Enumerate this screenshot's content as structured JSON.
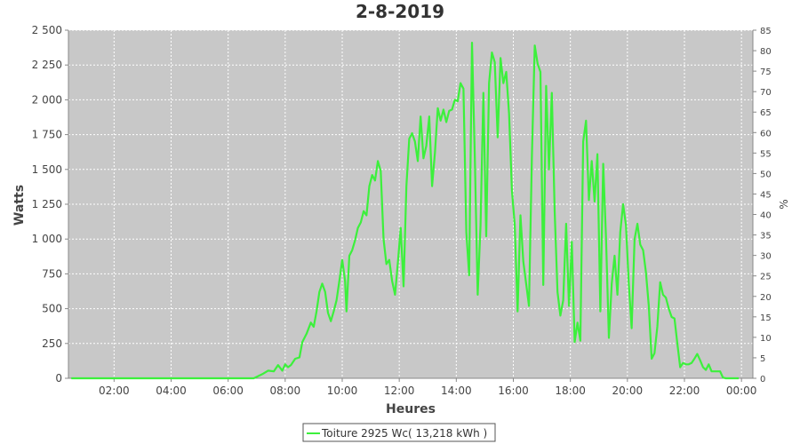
{
  "chart_data": {
    "type": "line",
    "title": "2-8-2019",
    "xlabel": "Heures",
    "ylabel": "Watts",
    "y2label": "%",
    "xlim": [
      0.4,
      24.4
    ],
    "ylim": [
      0,
      2500
    ],
    "y2lim": [
      0,
      85
    ],
    "x_ticks": [
      {
        "x": 2,
        "label": "02:00"
      },
      {
        "x": 4,
        "label": "04:00"
      },
      {
        "x": 6,
        "label": "06:00"
      },
      {
        "x": 8,
        "label": "08:00"
      },
      {
        "x": 10,
        "label": "10:00"
      },
      {
        "x": 12,
        "label": "12:00"
      },
      {
        "x": 14,
        "label": "14:00"
      },
      {
        "x": 16,
        "label": "16:00"
      },
      {
        "x": 18,
        "label": "18:00"
      },
      {
        "x": 20,
        "label": "20:00"
      },
      {
        "x": 22,
        "label": "22:00"
      },
      {
        "x": 24,
        "label": "00:00"
      }
    ],
    "y_ticks": [
      {
        "v": 0,
        "label": "0"
      },
      {
        "v": 250,
        "label": "250"
      },
      {
        "v": 500,
        "label": "500"
      },
      {
        "v": 750,
        "label": "750"
      },
      {
        "v": 1000,
        "label": "1 000"
      },
      {
        "v": 1250,
        "label": "1 250"
      },
      {
        "v": 1500,
        "label": "1 500"
      },
      {
        "v": 1750,
        "label": "1 750"
      },
      {
        "v": 2000,
        "label": "2 000"
      },
      {
        "v": 2250,
        "label": "2 250"
      },
      {
        "v": 2500,
        "label": "2 500"
      }
    ],
    "y2_ticks": [
      {
        "v": 0,
        "label": "0"
      },
      {
        "v": 5,
        "label": "5"
      },
      {
        "v": 10,
        "label": "10"
      },
      {
        "v": 15,
        "label": "15"
      },
      {
        "v": 20,
        "label": "20"
      },
      {
        "v": 25,
        "label": "25"
      },
      {
        "v": 30,
        "label": "30"
      },
      {
        "v": 35,
        "label": "35"
      },
      {
        "v": 40,
        "label": "40"
      },
      {
        "v": 45,
        "label": "45"
      },
      {
        "v": 50,
        "label": "50"
      },
      {
        "v": 55,
        "label": "55"
      },
      {
        "v": 60,
        "label": "60"
      },
      {
        "v": 65,
        "label": "65"
      },
      {
        "v": 70,
        "label": "70"
      },
      {
        "v": 75,
        "label": "75"
      },
      {
        "v": 80,
        "label": "80"
      },
      {
        "v": 85,
        "label": "85"
      }
    ],
    "grid": true,
    "legend_position": "bottom-center",
    "colors": {
      "plot_background": "#c8c8c8",
      "grid": "#ffffff",
      "series": "#3cf03c"
    },
    "series": [
      {
        "name": "Toiture 2925 Wc( 13,218 kWh )",
        "points": [
          [
            0.5,
            0
          ],
          [
            6.9,
            0
          ],
          [
            7.0,
            10
          ],
          [
            7.2,
            30
          ],
          [
            7.4,
            55
          ],
          [
            7.6,
            50
          ],
          [
            7.75,
            95
          ],
          [
            7.9,
            55
          ],
          [
            8.0,
            100
          ],
          [
            8.1,
            80
          ],
          [
            8.2,
            95
          ],
          [
            8.35,
            140
          ],
          [
            8.5,
            150
          ],
          [
            8.6,
            260
          ],
          [
            8.75,
            320
          ],
          [
            8.9,
            400
          ],
          [
            9.0,
            370
          ],
          [
            9.1,
            480
          ],
          [
            9.2,
            620
          ],
          [
            9.3,
            680
          ],
          [
            9.4,
            620
          ],
          [
            9.5,
            470
          ],
          [
            9.6,
            410
          ],
          [
            9.7,
            480
          ],
          [
            9.8,
            560
          ],
          [
            9.9,
            700
          ],
          [
            10.0,
            850
          ],
          [
            10.1,
            700
          ],
          [
            10.15,
            480
          ],
          [
            10.25,
            880
          ],
          [
            10.35,
            920
          ],
          [
            10.45,
            990
          ],
          [
            10.55,
            1080
          ],
          [
            10.65,
            1120
          ],
          [
            10.75,
            1200
          ],
          [
            10.85,
            1170
          ],
          [
            10.95,
            1380
          ],
          [
            11.05,
            1460
          ],
          [
            11.15,
            1420
          ],
          [
            11.25,
            1560
          ],
          [
            11.35,
            1490
          ],
          [
            11.45,
            1000
          ],
          [
            11.55,
            820
          ],
          [
            11.65,
            850
          ],
          [
            11.75,
            700
          ],
          [
            11.85,
            600
          ],
          [
            11.95,
            830
          ],
          [
            12.05,
            1080
          ],
          [
            12.15,
            660
          ],
          [
            12.25,
            1380
          ],
          [
            12.35,
            1720
          ],
          [
            12.45,
            1760
          ],
          [
            12.55,
            1700
          ],
          [
            12.65,
            1560
          ],
          [
            12.75,
            1880
          ],
          [
            12.85,
            1580
          ],
          [
            12.95,
            1670
          ],
          [
            13.05,
            1880
          ],
          [
            13.15,
            1380
          ],
          [
            13.25,
            1620
          ],
          [
            13.35,
            1940
          ],
          [
            13.45,
            1850
          ],
          [
            13.55,
            1930
          ],
          [
            13.65,
            1840
          ],
          [
            13.75,
            1920
          ],
          [
            13.85,
            1930
          ],
          [
            13.95,
            2000
          ],
          [
            14.05,
            1990
          ],
          [
            14.15,
            2120
          ],
          [
            14.25,
            2080
          ],
          [
            14.35,
            1050
          ],
          [
            14.45,
            740
          ],
          [
            14.55,
            2410
          ],
          [
            14.65,
            1580
          ],
          [
            14.75,
            600
          ],
          [
            14.85,
            1100
          ],
          [
            14.95,
            2050
          ],
          [
            15.05,
            1020
          ],
          [
            15.15,
            2120
          ],
          [
            15.25,
            2340
          ],
          [
            15.35,
            2270
          ],
          [
            15.45,
            1730
          ],
          [
            15.55,
            2300
          ],
          [
            15.65,
            2120
          ],
          [
            15.75,
            2200
          ],
          [
            15.85,
            1900
          ],
          [
            15.95,
            1350
          ],
          [
            16.05,
            1100
          ],
          [
            16.15,
            480
          ],
          [
            16.25,
            1170
          ],
          [
            16.35,
            840
          ],
          [
            16.45,
            680
          ],
          [
            16.55,
            520
          ],
          [
            16.65,
            1600
          ],
          [
            16.75,
            2390
          ],
          [
            16.85,
            2260
          ],
          [
            16.95,
            2200
          ],
          [
            17.05,
            670
          ],
          [
            17.15,
            2100
          ],
          [
            17.25,
            1500
          ],
          [
            17.35,
            2050
          ],
          [
            17.45,
            1200
          ],
          [
            17.55,
            620
          ],
          [
            17.65,
            450
          ],
          [
            17.75,
            560
          ],
          [
            17.85,
            1110
          ],
          [
            17.95,
            520
          ],
          [
            18.05,
            980
          ],
          [
            18.15,
            260
          ],
          [
            18.25,
            400
          ],
          [
            18.35,
            270
          ],
          [
            18.45,
            1700
          ],
          [
            18.55,
            1850
          ],
          [
            18.65,
            1280
          ],
          [
            18.75,
            1560
          ],
          [
            18.85,
            1270
          ],
          [
            18.95,
            1610
          ],
          [
            19.05,
            480
          ],
          [
            19.15,
            1540
          ],
          [
            19.25,
            1000
          ],
          [
            19.35,
            290
          ],
          [
            19.45,
            680
          ],
          [
            19.55,
            880
          ],
          [
            19.65,
            600
          ],
          [
            19.75,
            1050
          ],
          [
            19.85,
            1250
          ],
          [
            19.95,
            1100
          ],
          [
            20.05,
            680
          ],
          [
            20.15,
            360
          ],
          [
            20.25,
            1000
          ],
          [
            20.35,
            1110
          ],
          [
            20.45,
            960
          ],
          [
            20.55,
            920
          ],
          [
            20.65,
            760
          ],
          [
            20.75,
            520
          ],
          [
            20.85,
            140
          ],
          [
            20.95,
            180
          ],
          [
            21.05,
            370
          ],
          [
            21.15,
            690
          ],
          [
            21.25,
            600
          ],
          [
            21.35,
            580
          ],
          [
            21.45,
            500
          ],
          [
            21.55,
            440
          ],
          [
            21.65,
            430
          ],
          [
            21.75,
            250
          ],
          [
            21.85,
            80
          ],
          [
            21.95,
            110
          ],
          [
            22.05,
            100
          ],
          [
            22.15,
            100
          ],
          [
            22.25,
            110
          ],
          [
            22.35,
            140
          ],
          [
            22.45,
            175
          ],
          [
            22.55,
            130
          ],
          [
            22.65,
            80
          ],
          [
            22.75,
            60
          ],
          [
            22.85,
            100
          ],
          [
            22.95,
            50
          ],
          [
            23.05,
            50
          ],
          [
            23.25,
            50
          ],
          [
            23.35,
            5
          ],
          [
            23.45,
            0
          ],
          [
            23.9,
            0
          ]
        ]
      }
    ]
  }
}
